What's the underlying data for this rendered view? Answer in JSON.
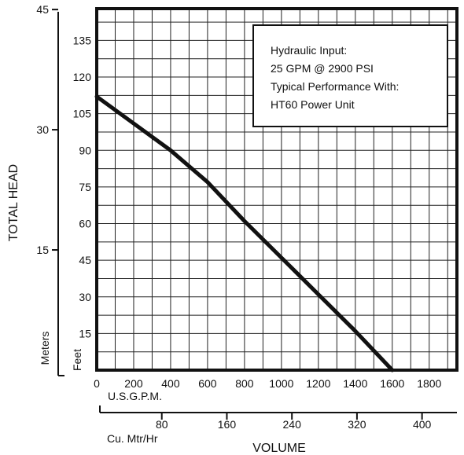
{
  "chart_data": {
    "type": "line",
    "ylabel": "TOTAL HEAD",
    "xlabel": "VOLUME",
    "meters_label": "Meters",
    "feet_label": "Feet",
    "usgpm_label": "U.S.G.P.M.",
    "cumtr_label": "Cu. Mtr/Hr",
    "x_ticks": [
      0,
      200,
      400,
      600,
      800,
      1000,
      1200,
      1400,
      1600,
      1800
    ],
    "feet_ticks": [
      15,
      30,
      45,
      60,
      75,
      90,
      105,
      120,
      135
    ],
    "meter_ticks": [
      15,
      30,
      45
    ],
    "cumtr_ticks": [
      80,
      160,
      240,
      320,
      400
    ],
    "xlim": [
      0,
      1950
    ],
    "ylim_feet": [
      0,
      148
    ],
    "grid": true,
    "series": [
      {
        "x": [
          0,
          200,
          400,
          600,
          800,
          1000,
          1200,
          1400,
          1600
        ],
        "y": [
          112,
          101,
          90,
          77,
          61,
          46,
          31,
          16,
          0
        ]
      }
    ],
    "annotation": [
      "Hydraulic Input:",
      "25 GPM @ 2900 PSI",
      "Typical Performance With:",
      "HT60 Power Unit"
    ]
  }
}
